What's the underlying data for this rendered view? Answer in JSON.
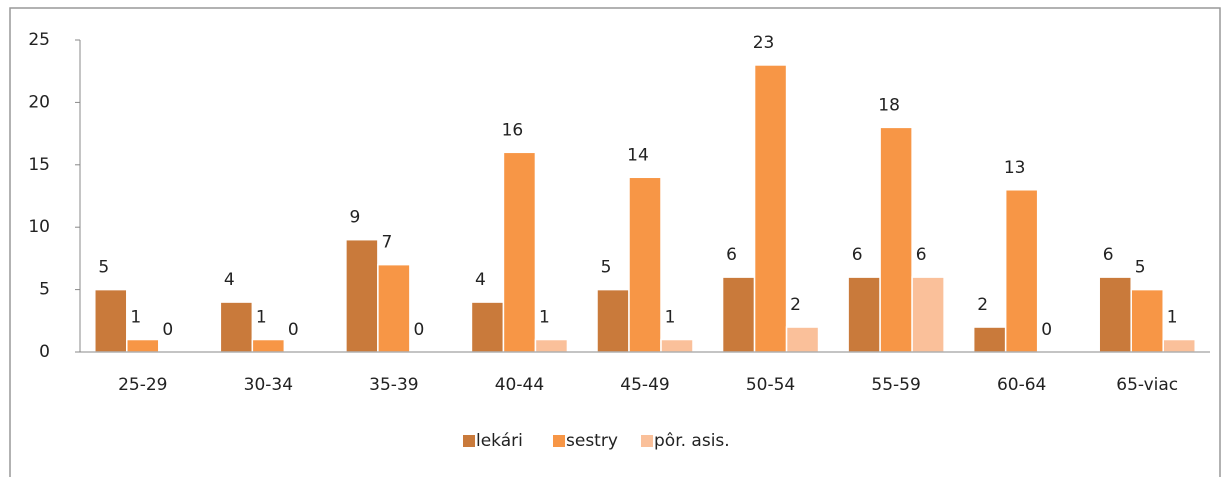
{
  "chart_data": {
    "type": "bar",
    "categories": [
      "25-29",
      "30-34",
      "35-39",
      "40-44",
      "45-49",
      "50-54",
      "55-59",
      "60-64",
      "65-viac"
    ],
    "series": [
      {
        "name": "lekári",
        "color": "#c97a3b",
        "values": [
          5,
          4,
          9,
          4,
          5,
          6,
          6,
          2,
          6
        ]
      },
      {
        "name": "sestry",
        "color": "#f79646",
        "values": [
          1,
          1,
          7,
          16,
          14,
          23,
          18,
          13,
          5
        ]
      },
      {
        "name": "pôr. asis.",
        "color": "#fac09a",
        "values": [
          0,
          0,
          0,
          1,
          1,
          2,
          6,
          0,
          1
        ]
      }
    ],
    "ylim": [
      0,
      25
    ],
    "yticks": [
      0,
      5,
      10,
      15,
      20,
      25
    ],
    "grid": false,
    "legend": "bottom"
  }
}
